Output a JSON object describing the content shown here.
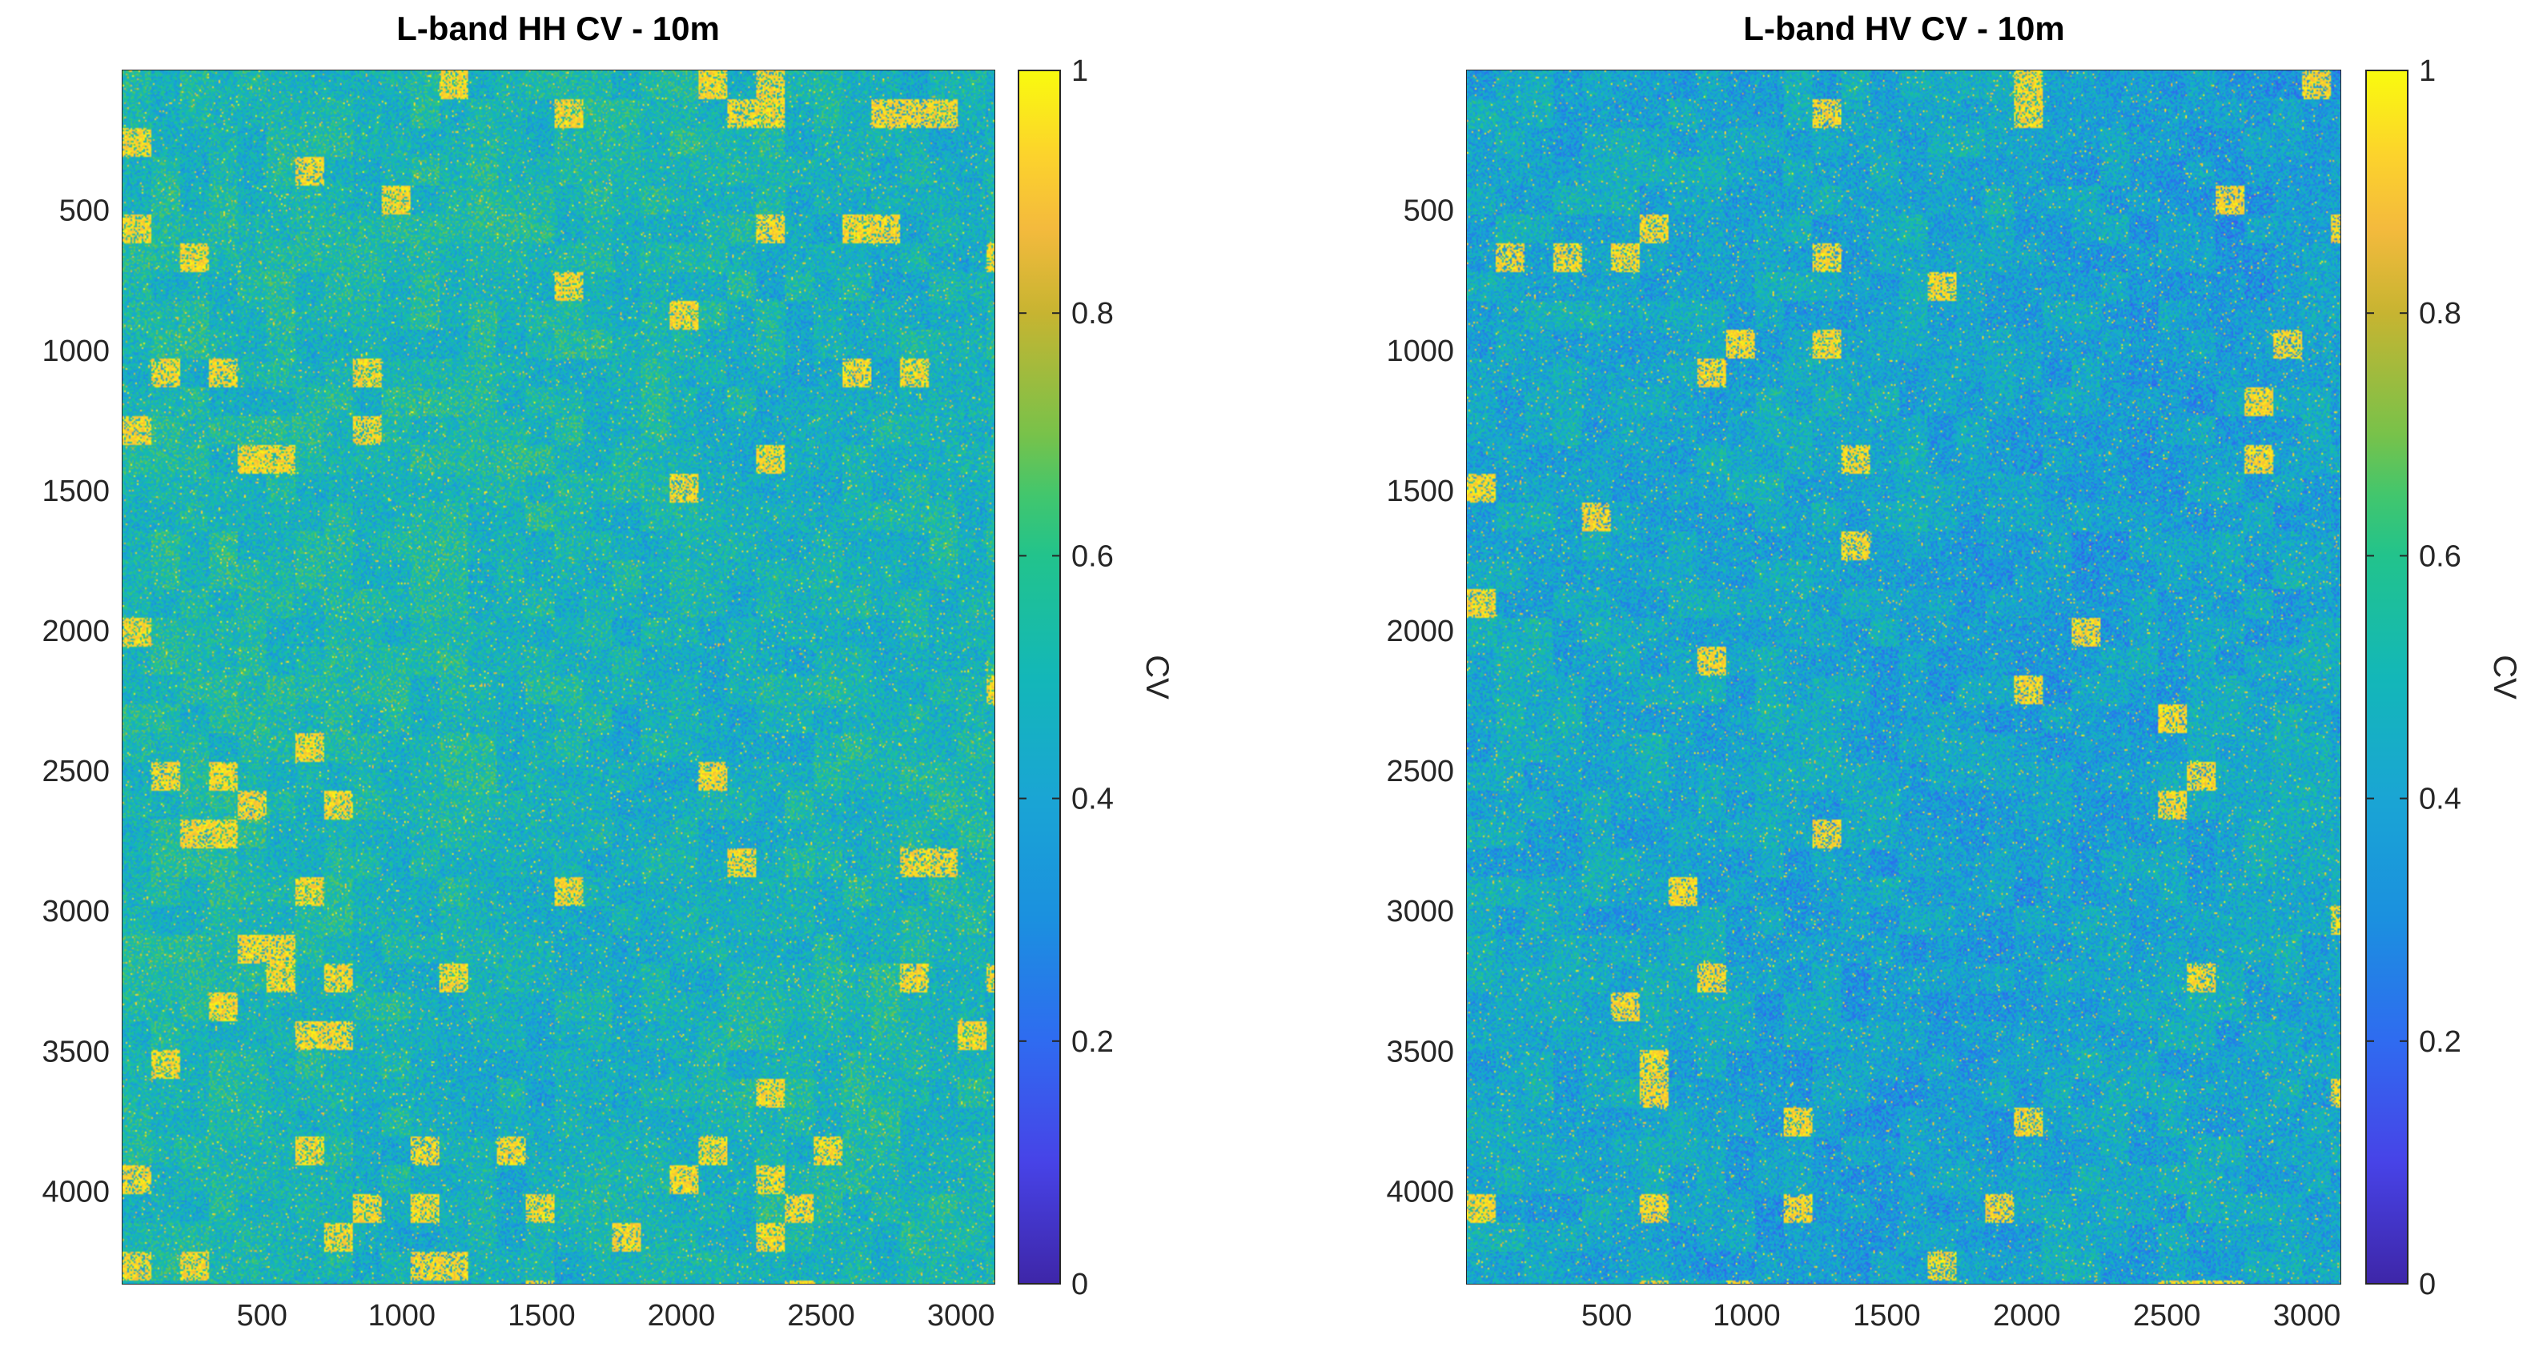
{
  "chart_data": [
    {
      "type": "heatmap",
      "title": "L-band HH CV - 10m",
      "x_ticks": [
        500,
        1000,
        1500,
        2000,
        2500,
        3000
      ],
      "y_ticks": [
        500,
        1000,
        1500,
        2000,
        2500,
        3000,
        3500,
        4000
      ],
      "xlim": [
        1,
        3120
      ],
      "ylim": [
        1,
        4330
      ],
      "y_direction": "reverse",
      "colormap": "parula",
      "clim": [
        0,
        1
      ],
      "colorbar": {
        "label": "CV",
        "ticks": [
          0,
          0.2,
          0.4,
          0.6,
          0.8,
          1
        ]
      },
      "typical_value": 0.5,
      "bright_fraction": 0.09
    },
    {
      "type": "heatmap",
      "title": "L-band HV CV - 10m",
      "x_ticks": [
        500,
        1000,
        1500,
        2000,
        2500,
        3000
      ],
      "y_ticks": [
        500,
        1000,
        1500,
        2000,
        2500,
        3000,
        3500,
        4000
      ],
      "xlim": [
        1,
        3120
      ],
      "ylim": [
        1,
        4330
      ],
      "y_direction": "reverse",
      "colormap": "parula",
      "clim": [
        0,
        1
      ],
      "colorbar": {
        "label": "CV",
        "ticks": [
          0,
          0.2,
          0.4,
          0.6,
          0.8,
          1
        ]
      },
      "typical_value": 0.42,
      "bright_fraction": 0.05
    }
  ]
}
